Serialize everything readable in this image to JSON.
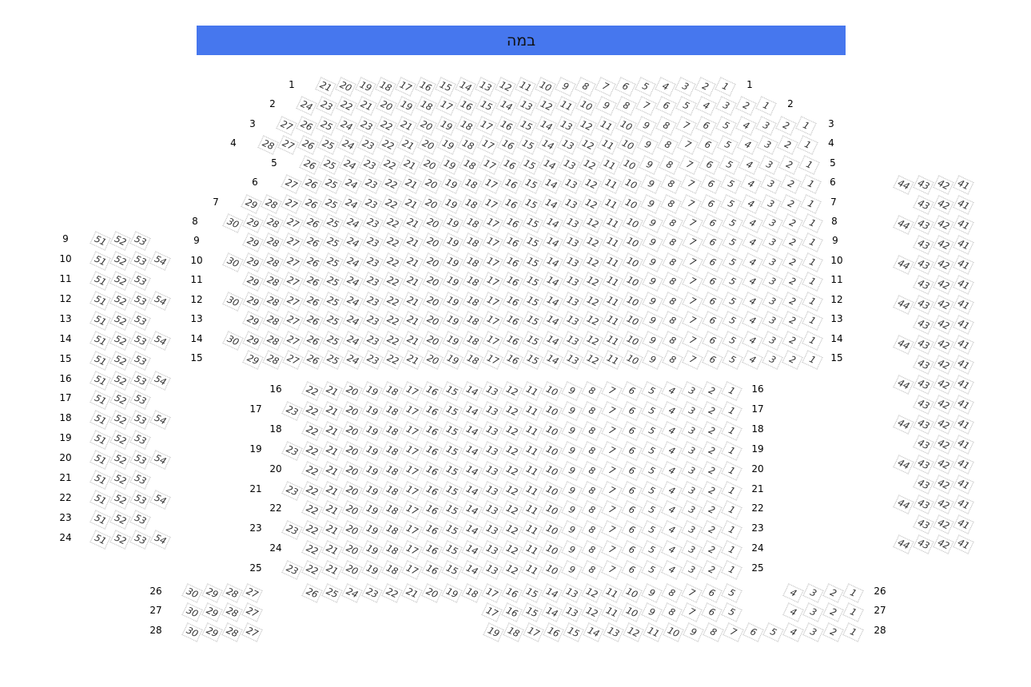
{
  "stage": {
    "label": "במה",
    "color": "#4677ee"
  },
  "rows": [
    {
      "label": "1",
      "sections": [
        {
          "block": "upper",
          "high": 21,
          "low": 1
        }
      ]
    },
    {
      "label": "2",
      "sections": [
        {
          "block": "upper",
          "high": 24,
          "low": 1
        }
      ]
    },
    {
      "label": "3",
      "sections": [
        {
          "block": "upper",
          "high": 27,
          "low": 1
        }
      ]
    },
    {
      "label": "4",
      "sections": [
        {
          "block": "upper",
          "high": 28,
          "low": 1
        }
      ]
    },
    {
      "label": "5",
      "sections": [
        {
          "block": "upper",
          "high": 26,
          "low": 1
        }
      ]
    },
    {
      "label": "6",
      "sections": [
        {
          "block": "upper",
          "high": 27,
          "low": 1
        }
      ]
    },
    {
      "label": "7",
      "sections": [
        {
          "block": "upper",
          "high": 29,
          "low": 1
        }
      ]
    },
    {
      "label": "8",
      "sections": [
        {
          "block": "upper",
          "high": 30,
          "low": 1
        }
      ]
    },
    {
      "label": "9",
      "sections": [
        {
          "block": "upper",
          "high": 29,
          "low": 1
        },
        {
          "block": "left",
          "high": 53,
          "low": 51
        }
      ]
    },
    {
      "label": "10",
      "sections": [
        {
          "block": "upper",
          "high": 30,
          "low": 1
        },
        {
          "block": "left",
          "high": 54,
          "low": 51
        }
      ]
    },
    {
      "label": "11",
      "sections": [
        {
          "block": "upper",
          "high": 29,
          "low": 1
        },
        {
          "block": "left",
          "high": 53,
          "low": 51
        }
      ]
    },
    {
      "label": "12",
      "sections": [
        {
          "block": "upper",
          "high": 30,
          "low": 1
        },
        {
          "block": "left",
          "high": 54,
          "low": 51
        }
      ]
    },
    {
      "label": "13",
      "sections": [
        {
          "block": "upper",
          "high": 29,
          "low": 1
        },
        {
          "block": "left",
          "high": 53,
          "low": 51
        }
      ]
    },
    {
      "label": "14",
      "sections": [
        {
          "block": "upper",
          "high": 30,
          "low": 1
        },
        {
          "block": "left",
          "high": 54,
          "low": 51
        }
      ]
    },
    {
      "label": "15",
      "sections": [
        {
          "block": "upper",
          "high": 29,
          "low": 1
        },
        {
          "block": "left",
          "high": 53,
          "low": 51
        }
      ]
    },
    {
      "label": "16",
      "sections": [
        {
          "block": "lower",
          "high": 22,
          "low": 1
        },
        {
          "block": "left",
          "high": 54,
          "low": 51
        }
      ]
    },
    {
      "label": "17",
      "sections": [
        {
          "block": "lower",
          "high": 23,
          "low": 1
        },
        {
          "block": "left",
          "high": 53,
          "low": 51
        }
      ]
    },
    {
      "label": "18",
      "sections": [
        {
          "block": "lower",
          "high": 22,
          "low": 1
        },
        {
          "block": "left",
          "high": 54,
          "low": 51
        }
      ]
    },
    {
      "label": "19",
      "sections": [
        {
          "block": "lower",
          "high": 23,
          "low": 1
        },
        {
          "block": "left",
          "high": 53,
          "low": 51
        }
      ]
    },
    {
      "label": "20",
      "sections": [
        {
          "block": "lower",
          "high": 22,
          "low": 1
        },
        {
          "block": "left",
          "high": 54,
          "low": 51
        }
      ]
    },
    {
      "label": "21",
      "sections": [
        {
          "block": "lower",
          "high": 23,
          "low": 1
        },
        {
          "block": "left",
          "high": 53,
          "low": 51
        }
      ]
    },
    {
      "label": "22",
      "sections": [
        {
          "block": "lower",
          "high": 22,
          "low": 1
        },
        {
          "block": "left",
          "high": 54,
          "low": 51
        }
      ]
    },
    {
      "label": "23",
      "sections": [
        {
          "block": "lower",
          "high": 23,
          "low": 1
        },
        {
          "block": "left",
          "high": 53,
          "low": 51
        }
      ]
    },
    {
      "label": "24",
      "sections": [
        {
          "block": "lower",
          "high": 22,
          "low": 1
        },
        {
          "block": "left",
          "high": 54,
          "low": 51
        }
      ]
    },
    {
      "label": "25",
      "sections": [
        {
          "block": "lower",
          "high": 23,
          "low": 1
        }
      ]
    },
    {
      "label": "26",
      "sections": [
        {
          "block": "back-left",
          "high": 30,
          "low": 27
        },
        {
          "block": "back-mid",
          "high": 26,
          "low": 5
        },
        {
          "block": "back-right",
          "high": 4,
          "low": 1
        }
      ]
    },
    {
      "label": "27",
      "sections": [
        {
          "block": "back-left",
          "high": 30,
          "low": 27
        },
        {
          "block": "back-mid",
          "high": 17,
          "low": 5
        },
        {
          "block": "back-right",
          "high": 4,
          "low": 1
        }
      ]
    },
    {
      "label": "28",
      "sections": [
        {
          "block": "back-left",
          "high": 30,
          "low": 27
        },
        {
          "block": "back-right",
          "high": 19,
          "low": 1
        }
      ]
    }
  ],
  "right_block": [
    {
      "high": 44,
      "low": 41
    },
    {
      "high": 43,
      "low": 41
    },
    {
      "high": 44,
      "low": 41
    },
    {
      "high": 43,
      "low": 41
    },
    {
      "high": 44,
      "low": 41
    },
    {
      "high": 43,
      "low": 41
    },
    {
      "high": 44,
      "low": 41
    },
    {
      "high": 43,
      "low": 41
    },
    {
      "high": 44,
      "low": 41
    },
    {
      "high": 43,
      "low": 41
    },
    {
      "high": 44,
      "low": 41
    },
    {
      "high": 43,
      "low": 41
    },
    {
      "high": 44,
      "low": 41
    },
    {
      "high": 43,
      "low": 41
    },
    {
      "high": 44,
      "low": 41
    },
    {
      "high": 43,
      "low": 41
    },
    {
      "high": 44,
      "low": 41
    },
    {
      "high": 43,
      "low": 41
    },
    {
      "high": 44,
      "low": 41
    }
  ]
}
